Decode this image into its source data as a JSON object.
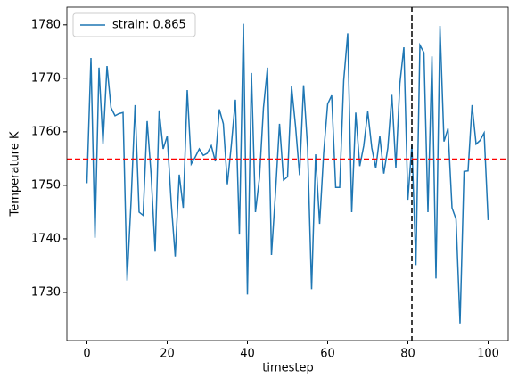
{
  "chart_data": {
    "type": "line",
    "xlabel": "timestep",
    "ylabel": "Temperature K",
    "x": [
      0,
      1,
      2,
      3,
      4,
      5,
      6,
      7,
      8,
      9,
      10,
      11,
      12,
      13,
      14,
      15,
      16,
      17,
      18,
      19,
      20,
      21,
      22,
      23,
      24,
      25,
      26,
      27,
      28,
      29,
      30,
      31,
      32,
      33,
      34,
      35,
      36,
      37,
      38,
      39,
      40,
      41,
      42,
      43,
      44,
      45,
      46,
      47,
      48,
      49,
      50,
      51,
      52,
      53,
      54,
      55,
      56,
      57,
      58,
      59,
      60,
      61,
      62,
      63,
      64,
      65,
      66,
      67,
      68,
      69,
      70,
      71,
      72,
      73,
      74,
      75,
      76,
      77,
      78,
      79,
      80,
      81,
      82,
      83,
      84,
      85,
      86,
      87,
      88,
      89,
      90,
      91,
      92,
      93,
      94,
      95,
      96,
      97,
      98,
      99,
      100
    ],
    "series": [
      {
        "name": "strain: 0.865",
        "color": "#1f77b4",
        "values": [
          1750.4,
          1773.8,
          1740.2,
          1772,
          1757.8,
          1772.3,
          1764.5,
          1763,
          1763.4,
          1763.6,
          1732.2,
          1747,
          1765,
          1745,
          1744.4,
          1762,
          1752,
          1737.6,
          1764,
          1756.8,
          1759.2,
          1746.8,
          1736.7,
          1752,
          1745.8,
          1767.8,
          1754,
          1755.3,
          1756.8,
          1755.6,
          1756,
          1757.4,
          1754.5,
          1764.2,
          1761.5,
          1750.2,
          1757.6,
          1766,
          1740.8,
          1780.2,
          1729.6,
          1771,
          1745,
          1751.4,
          1764.5,
          1772,
          1737,
          1748.6,
          1761.5,
          1751,
          1751.6,
          1768.5,
          1761,
          1751.9,
          1768.7,
          1757,
          1730.6,
          1755.8,
          1742.8,
          1756,
          1765.2,
          1766.8,
          1749.6,
          1749.6,
          1769.6,
          1778.4,
          1745,
          1763.6,
          1753.6,
          1757.4,
          1763.8,
          1757,
          1753.2,
          1759.2,
          1752.2,
          1757,
          1766.9,
          1753.3,
          1769,
          1775.8,
          1747.3,
          1757.6,
          1735.1,
          1776.2,
          1774.8,
          1745,
          1774.1,
          1732.6,
          1779.8,
          1758.2,
          1760.6,
          1745.8,
          1743.7,
          1724.2,
          1752.6,
          1752.7,
          1765,
          1757.7,
          1758.4,
          1759.8,
          1743.5
        ]
      }
    ],
    "hline": {
      "value": 1754.9,
      "color": "#ff0000"
    },
    "vline": {
      "value": 81,
      "color": "#000000"
    },
    "xlim": [
      -5,
      105
    ],
    "ylim": [
      1721,
      1783.3
    ],
    "xticks": [
      0,
      20,
      40,
      60,
      80,
      100
    ],
    "yticks": [
      1730,
      1740,
      1750,
      1760,
      1770,
      1780
    ],
    "legend": "upper-left"
  }
}
